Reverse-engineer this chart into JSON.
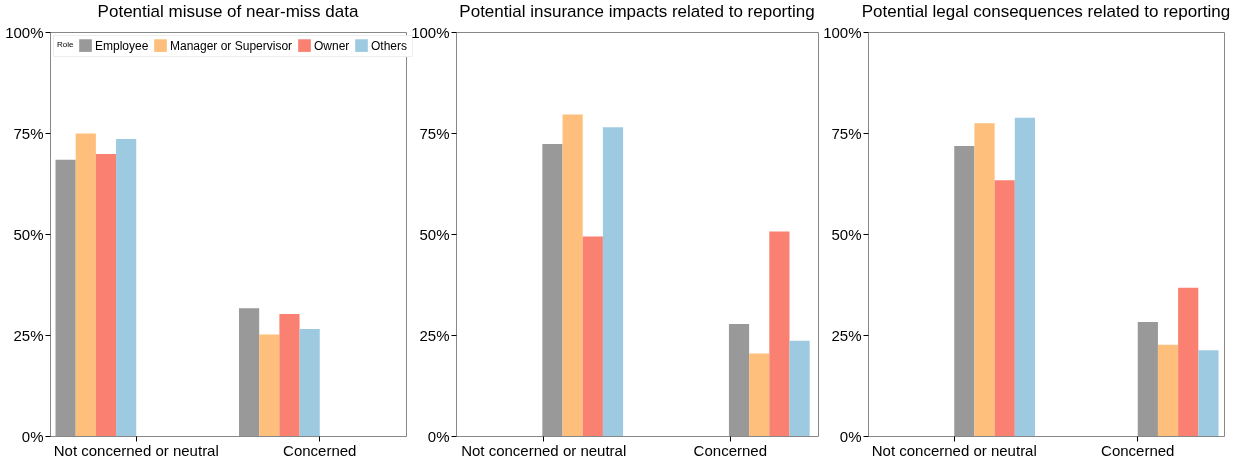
{
  "chart_data": [
    {
      "type": "bar",
      "title": "Potential misuse of near-miss data",
      "categories": [
        "Not concerned or neutral",
        "Concerned"
      ],
      "legend_title": "Role",
      "legend": "top left",
      "grid": false,
      "ylim": [
        0,
        100
      ],
      "yticks": [
        {
          "value": 0,
          "label": "0%"
        },
        {
          "value": 25,
          "label": "25%"
        },
        {
          "value": 50,
          "label": "50%"
        },
        {
          "value": 75,
          "label": "75%"
        },
        {
          "value": 100,
          "label": "100%"
        }
      ],
      "series": [
        {
          "name": "Employee",
          "color": "#999999",
          "values": [
            68.4,
            31.6
          ]
        },
        {
          "name": "Manager or Supervisor",
          "color": "#fdbf7b",
          "values": [
            74.9,
            25.1
          ]
        },
        {
          "name": "Owner",
          "color": "#fa8072",
          "values": [
            69.8,
            30.2
          ]
        },
        {
          "name": "Others",
          "color": "#9ecae1",
          "values": [
            73.5,
            26.5
          ]
        }
      ]
    },
    {
      "type": "bar",
      "title": "Potential insurance impacts related to reporting",
      "categories": [
        "Not concerned or neutral",
        "Concerned"
      ],
      "legend": false,
      "grid": false,
      "ylim": [
        0,
        100
      ],
      "yticks": [
        {
          "value": 0,
          "label": "0%"
        },
        {
          "value": 25,
          "label": "25%"
        },
        {
          "value": 50,
          "label": "50%"
        },
        {
          "value": 75,
          "label": "75%"
        },
        {
          "value": 100,
          "label": "100%"
        }
      ],
      "series": [
        {
          "color": "#999999",
          "values": [
            72.3,
            27.7
          ]
        },
        {
          "color": "#fdbf7b",
          "values": [
            79.6,
            20.4
          ]
        },
        {
          "color": "#fa8072",
          "values": [
            49.4,
            50.6
          ]
        },
        {
          "color": "#9ecae1",
          "values": [
            76.4,
            23.6
          ]
        }
      ]
    },
    {
      "type": "bar",
      "title": "Potential legal consequences related to reporting",
      "categories": [
        "Not concerned or neutral",
        "Concerned"
      ],
      "legend": false,
      "grid": false,
      "ylim": [
        0,
        100
      ],
      "yticks": [
        {
          "value": 0,
          "label": "0%"
        },
        {
          "value": 25,
          "label": "25%"
        },
        {
          "value": 50,
          "label": "50%"
        },
        {
          "value": 75,
          "label": "75%"
        },
        {
          "value": 100,
          "label": "100%"
        }
      ],
      "series": [
        {
          "color": "#999999",
          "values": [
            71.8,
            28.2
          ]
        },
        {
          "color": "#fdbf7b",
          "values": [
            77.4,
            22.6
          ]
        },
        {
          "color": "#fa8072",
          "values": [
            63.3,
            36.7
          ]
        },
        {
          "color": "#9ecae1",
          "values": [
            78.8,
            21.2
          ]
        }
      ]
    }
  ]
}
